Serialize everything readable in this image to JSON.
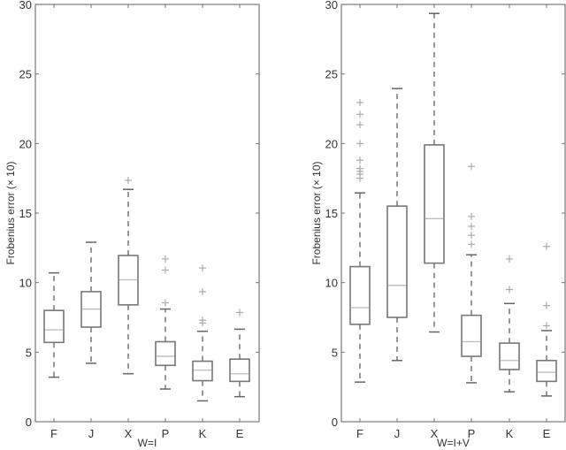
{
  "chart_data": [
    {
      "type": "box",
      "title": "",
      "xlabel": "W=I",
      "ylabel": "Frobenius error (× 10)",
      "ylim": [
        0,
        30
      ],
      "yticks": [
        0,
        5,
        10,
        15,
        20,
        25,
        30
      ],
      "categories": [
        "F",
        "J",
        "X",
        "P",
        "K",
        "E"
      ],
      "grid": false,
      "boxes": [
        {
          "label": "F",
          "whisker_low": 3.2,
          "q1": 5.7,
          "median": 6.6,
          "q3": 8.0,
          "whisker_high": 10.7,
          "outliers": []
        },
        {
          "label": "J",
          "whisker_low": 4.2,
          "q1": 6.8,
          "median": 8.1,
          "q3": 9.35,
          "whisker_high": 12.9,
          "outliers": []
        },
        {
          "label": "X",
          "whisker_low": 3.45,
          "q1": 8.4,
          "median": 10.2,
          "q3": 11.95,
          "whisker_high": 16.7,
          "outliers": [
            17.35
          ]
        },
        {
          "label": "P",
          "whisker_low": 2.35,
          "q1": 4.05,
          "median": 4.7,
          "q3": 5.75,
          "whisker_high": 8.1,
          "outliers": [
            8.55,
            10.9,
            11.7
          ]
        },
        {
          "label": "K",
          "whisker_low": 1.5,
          "q1": 2.95,
          "median": 3.7,
          "q3": 4.35,
          "whisker_high": 6.5,
          "outliers": [
            7.1,
            7.3,
            9.35,
            11.05
          ]
        },
        {
          "label": "E",
          "whisker_low": 1.8,
          "q1": 2.9,
          "median": 3.45,
          "q3": 4.5,
          "whisker_high": 6.65,
          "outliers": [
            7.85
          ]
        }
      ]
    },
    {
      "type": "box",
      "title": "",
      "xlabel": "W=I+V",
      "ylabel": "Frobenius error (× 10)",
      "ylim": [
        0,
        30
      ],
      "yticks": [
        0,
        5,
        10,
        15,
        20,
        25,
        30
      ],
      "categories": [
        "F",
        "J",
        "X",
        "P",
        "K",
        "E"
      ],
      "grid": false,
      "boxes": [
        {
          "label": "F",
          "whisker_low": 2.85,
          "q1": 7.0,
          "median": 8.2,
          "q3": 11.15,
          "whisker_high": 16.45,
          "outliers": [
            17.5,
            17.8,
            18.0,
            18.2,
            18.8,
            20.0,
            21.35,
            22.1,
            22.95
          ]
        },
        {
          "label": "J",
          "whisker_low": 4.4,
          "q1": 7.5,
          "median": 9.8,
          "q3": 15.5,
          "whisker_high": 23.95,
          "outliers": []
        },
        {
          "label": "X",
          "whisker_low": 6.45,
          "q1": 11.4,
          "median": 14.6,
          "q3": 19.9,
          "whisker_high": 29.35,
          "outliers": []
        },
        {
          "label": "P",
          "whisker_low": 2.8,
          "q1": 4.7,
          "median": 5.75,
          "q3": 7.65,
          "whisker_high": 12.0,
          "outliers": [
            12.75,
            13.4,
            14.05,
            14.75,
            18.35
          ]
        },
        {
          "label": "K",
          "whisker_low": 2.15,
          "q1": 3.75,
          "median": 4.4,
          "q3": 5.65,
          "whisker_high": 8.5,
          "outliers": [
            9.5,
            11.7
          ]
        },
        {
          "label": "E",
          "whisker_low": 1.85,
          "q1": 2.9,
          "median": 3.55,
          "q3": 4.4,
          "whisker_high": 6.55,
          "outliers": [
            6.9,
            8.35,
            12.6
          ]
        }
      ]
    }
  ],
  "panels": [
    {
      "xlabel": "W=I",
      "ylabel": "Frobenius error (× 10)"
    },
    {
      "xlabel": "W=I+V",
      "ylabel": "Frobenius error (× 10)"
    }
  ],
  "colors": {
    "frame": "#777777",
    "box": "#777777",
    "median": "#bbbbbb",
    "outlier": "#aaaaaa",
    "text": "#333333"
  }
}
